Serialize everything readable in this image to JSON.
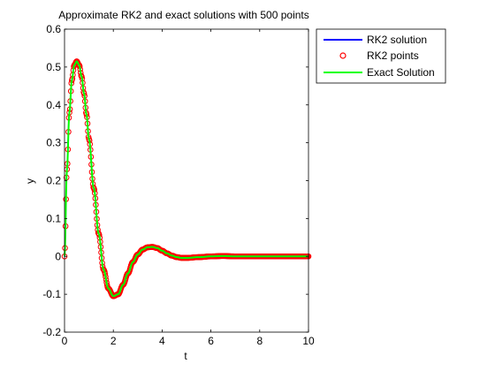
{
  "chart_data": {
    "type": "line",
    "title": "Approximate RK2 and exact solutions with 500 points",
    "xlabel": "t",
    "ylabel": "y",
    "xlim": [
      0,
      10
    ],
    "ylim": [
      -0.2,
      0.6
    ],
    "xticks": [
      0,
      2,
      4,
      6,
      8,
      10
    ],
    "yticks": [
      -0.2,
      -0.1,
      0,
      0.1,
      0.2,
      0.3,
      0.4,
      0.5,
      0.6
    ],
    "xtick_labels": [
      "0",
      "2",
      "4",
      "6",
      "8",
      "10"
    ],
    "ytick_labels": [
      "-0.2",
      "-0.1",
      "0",
      "0.1",
      "0.2",
      "0.3",
      "0.4",
      "0.5",
      "0.6"
    ],
    "grid": false,
    "legend_position": "top-right",
    "n_points": 500,
    "series": [
      {
        "name": "RK2 solution",
        "style": "line",
        "color": "#0000ff"
      },
      {
        "name": "RK2 points",
        "style": "circle-markers",
        "color": "#ff0000"
      },
      {
        "name": "Exact Solution",
        "style": "line",
        "color": "#00ff00"
      }
    ],
    "curve_samples": {
      "x": [
        0,
        0.1,
        0.2,
        0.3,
        0.4,
        0.5,
        0.6,
        0.7,
        0.8,
        0.9,
        1.0,
        1.2,
        1.4,
        1.6,
        1.8,
        2.0,
        2.2,
        2.4,
        2.6,
        2.8,
        3.0,
        3.2,
        3.4,
        3.6,
        3.8,
        4.0,
        4.2,
        4.4,
        4.6,
        4.8,
        5.0,
        5.5,
        6.0,
        6.5,
        7.0,
        8.0,
        9.0,
        10.0
      ],
      "y": [
        0,
        0.23,
        0.38,
        0.465,
        0.505,
        0.515,
        0.505,
        0.475,
        0.43,
        0.375,
        0.31,
        0.18,
        0.06,
        -0.035,
        -0.085,
        -0.105,
        -0.1,
        -0.075,
        -0.045,
        -0.015,
        0.005,
        0.018,
        0.024,
        0.025,
        0.022,
        0.015,
        0.008,
        0.002,
        -0.002,
        -0.004,
        -0.004,
        -0.002,
        0.0,
        0.001,
        0.0,
        0.0,
        0.0,
        0.0
      ]
    }
  }
}
